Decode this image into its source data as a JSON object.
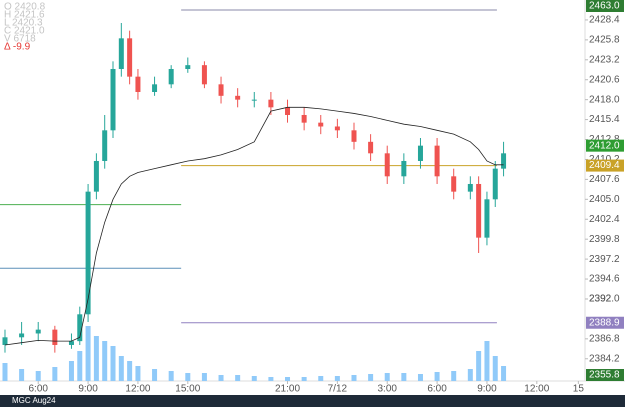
{
  "chart_data": {
    "type": "candlestick",
    "ohlc_legend": [
      "O 2420.8",
      "H 2421.6",
      "L 2420.3",
      "C 2421.0",
      "V 6718"
    ],
    "change": "Δ  -9.9",
    "symbol": "MGC Aug24",
    "x": [
      4,
      5,
      6,
      7,
      8,
      8.5,
      9,
      9.5,
      10,
      10.5,
      11,
      11.5,
      12,
      13,
      14,
      15,
      16,
      17,
      18,
      19,
      20,
      21,
      22,
      23,
      24,
      25,
      26,
      27,
      28,
      29,
      30,
      31,
      32,
      32.5,
      33,
      33.5,
      34
    ],
    "open": [
      2386,
      2387,
      2387.5,
      2388,
      2386,
      2386.5,
      2390,
      2406,
      2410,
      2414,
      2422,
      2426,
      2421,
      2419,
      2420,
      2422,
      2422.5,
      2420,
      2418.5,
      2418,
      2418,
      2417,
      2416,
      2415,
      2414.5,
      2414,
      2412.5,
      2411,
      2408,
      2410,
      2412,
      2408,
      2406,
      2407,
      2400,
      2405,
      2409
    ],
    "high": [
      2388,
      2389,
      2389,
      2388.5,
      2387.5,
      2391,
      2407,
      2411,
      2416,
      2423,
      2428,
      2427,
      2422,
      2421,
      2422.5,
      2423.5,
      2423,
      2421,
      2419.5,
      2419,
      2419,
      2418,
      2417,
      2416,
      2415.5,
      2415,
      2413.5,
      2412,
      2411,
      2413,
      2413,
      2409,
      2408,
      2408,
      2406,
      2410,
      2412.5
    ],
    "low": [
      2385,
      2386,
      2386.5,
      2385,
      2385.5,
      2386,
      2389,
      2405,
      2409,
      2413,
      2421,
      2420,
      2418,
      2418.5,
      2419.5,
      2421.5,
      2419.5,
      2417.5,
      2417,
      2417,
      2416,
      2415,
      2414,
      2413.5,
      2413,
      2411.5,
      2410,
      2407,
      2407,
      2409,
      2407,
      2405,
      2405,
      2398,
      2399,
      2404,
      2408
    ],
    "close": [
      2387,
      2387.5,
      2388,
      2386,
      2386.5,
      2390,
      2406,
      2410,
      2414,
      2422,
      2426,
      2421,
      2419,
      2420,
      2422,
      2422.5,
      2420,
      2418.5,
      2418,
      2418,
      2417,
      2416,
      2415,
      2414.5,
      2414,
      2412.5,
      2411,
      2408,
      2410,
      2412,
      2408,
      2406,
      2407,
      2400,
      2405,
      2409,
      2411
    ],
    "vwap": [
      2386,
      2386.3,
      2386.6,
      2386.5,
      2386.5,
      2387,
      2392,
      2398,
      2402,
      2405,
      2407,
      2408,
      2408.5,
      2409,
      2409.5,
      2410,
      2410.3,
      2410.8,
      2411.5,
      2412.5,
      2416.5,
      2417,
      2417,
      2416.8,
      2416.5,
      2416.2,
      2415.8,
      2415.3,
      2414.8,
      2414.5,
      2414,
      2413.5,
      2412.5,
      2411.5,
      2410,
      2409.5,
      2409.5
    ],
    "volume": [
      18,
      12,
      10,
      14,
      20,
      30,
      55,
      45,
      40,
      35,
      25,
      20,
      15,
      12,
      10,
      8,
      8,
      6,
      6,
      5,
      4,
      4,
      4,
      5,
      5,
      6,
      7,
      8,
      8,
      7,
      9,
      10,
      12,
      30,
      40,
      25,
      15
    ],
    "up_color": "#26a69a",
    "down_color": "#ef5350",
    "volume_color": "#90caf9",
    "vwap_color": "#222222",
    "levels": [
      {
        "value": 2429.7,
        "from": 14.6,
        "to": 33.6,
        "color": "#8888aa"
      },
      {
        "value": 2409.4,
        "from": 14.6,
        "to": 33.6,
        "color": "#c9a227"
      },
      {
        "value": 2388.9,
        "from": 14.6,
        "to": 33.6,
        "color": "#9080c0"
      },
      {
        "value": 2404.3,
        "from": 3.7,
        "to": 14.6,
        "color": "#4caf50"
      },
      {
        "value": 2396.0,
        "from": 3.7,
        "to": 14.6,
        "color": "#5c8fb8"
      }
    ],
    "price_tags": [
      {
        "value": 2463.0,
        "label": "2463.0",
        "color": "#2e7d32"
      },
      {
        "value": 2412.0,
        "label": "2412.0",
        "color": "#2e9d32"
      },
      {
        "value": 2409.4,
        "label": "2409.4",
        "color": "#c9a227"
      },
      {
        "value": 2388.9,
        "label": "2388.9",
        "color": "#9080c0"
      },
      {
        "value": 2355.8,
        "label": "2355.8",
        "color": "#2e7d32"
      }
    ],
    "xlim": [
      3.7,
      38.9
    ],
    "ylim": [
      2381.3,
      2431.0
    ],
    "y2lim": [
      0,
      100
    ],
    "xticks": [
      {
        "value": 6,
        "label": "6:00"
      },
      {
        "value": 9,
        "label": "9:00"
      },
      {
        "value": 12,
        "label": "12:00"
      },
      {
        "value": 15,
        "label": "15:00"
      },
      {
        "value": 21,
        "label": "21:00"
      },
      {
        "value": 24,
        "label": "7/12"
      },
      {
        "value": 27,
        "label": "3:00"
      },
      {
        "value": 30,
        "label": "6:00"
      },
      {
        "value": 33,
        "label": "9:00"
      },
      {
        "value": 36,
        "label": "12:00"
      },
      {
        "value": 38.5,
        "label": "15"
      }
    ],
    "yticks": [
      2384.2,
      2386.8,
      2392,
      {
        "value": 2392.0,
        "label": "2392.0"
      },
      2394.6,
      2397.2,
      2399.8,
      2402.4,
      {
        "value": 2405.0,
        "label": "2405.0"
      },
      2407.6,
      2410.2,
      2412.8,
      2415.4,
      {
        "value": 2418.0,
        "label": "2418.0"
      },
      2420.6,
      2423.2,
      2425.8,
      2428.4
    ]
  }
}
